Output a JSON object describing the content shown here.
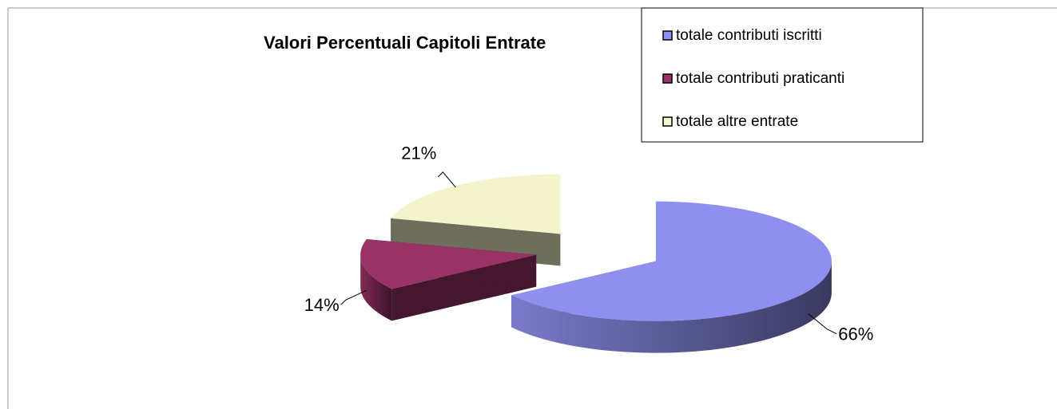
{
  "chart_data": {
    "type": "pie3d",
    "title": "Valori Percentuali Capitoli Entrate",
    "categories": [
      "totale contributi iscritti",
      "totale contributi praticanti",
      "totale altre entrate"
    ],
    "values": [
      66,
      14,
      21
    ],
    "value_labels": [
      "66%",
      "14%",
      "21%"
    ],
    "colors": [
      "#8f8fef",
      "#993366",
      "#f4f4cc"
    ],
    "legend": "top-right"
  }
}
